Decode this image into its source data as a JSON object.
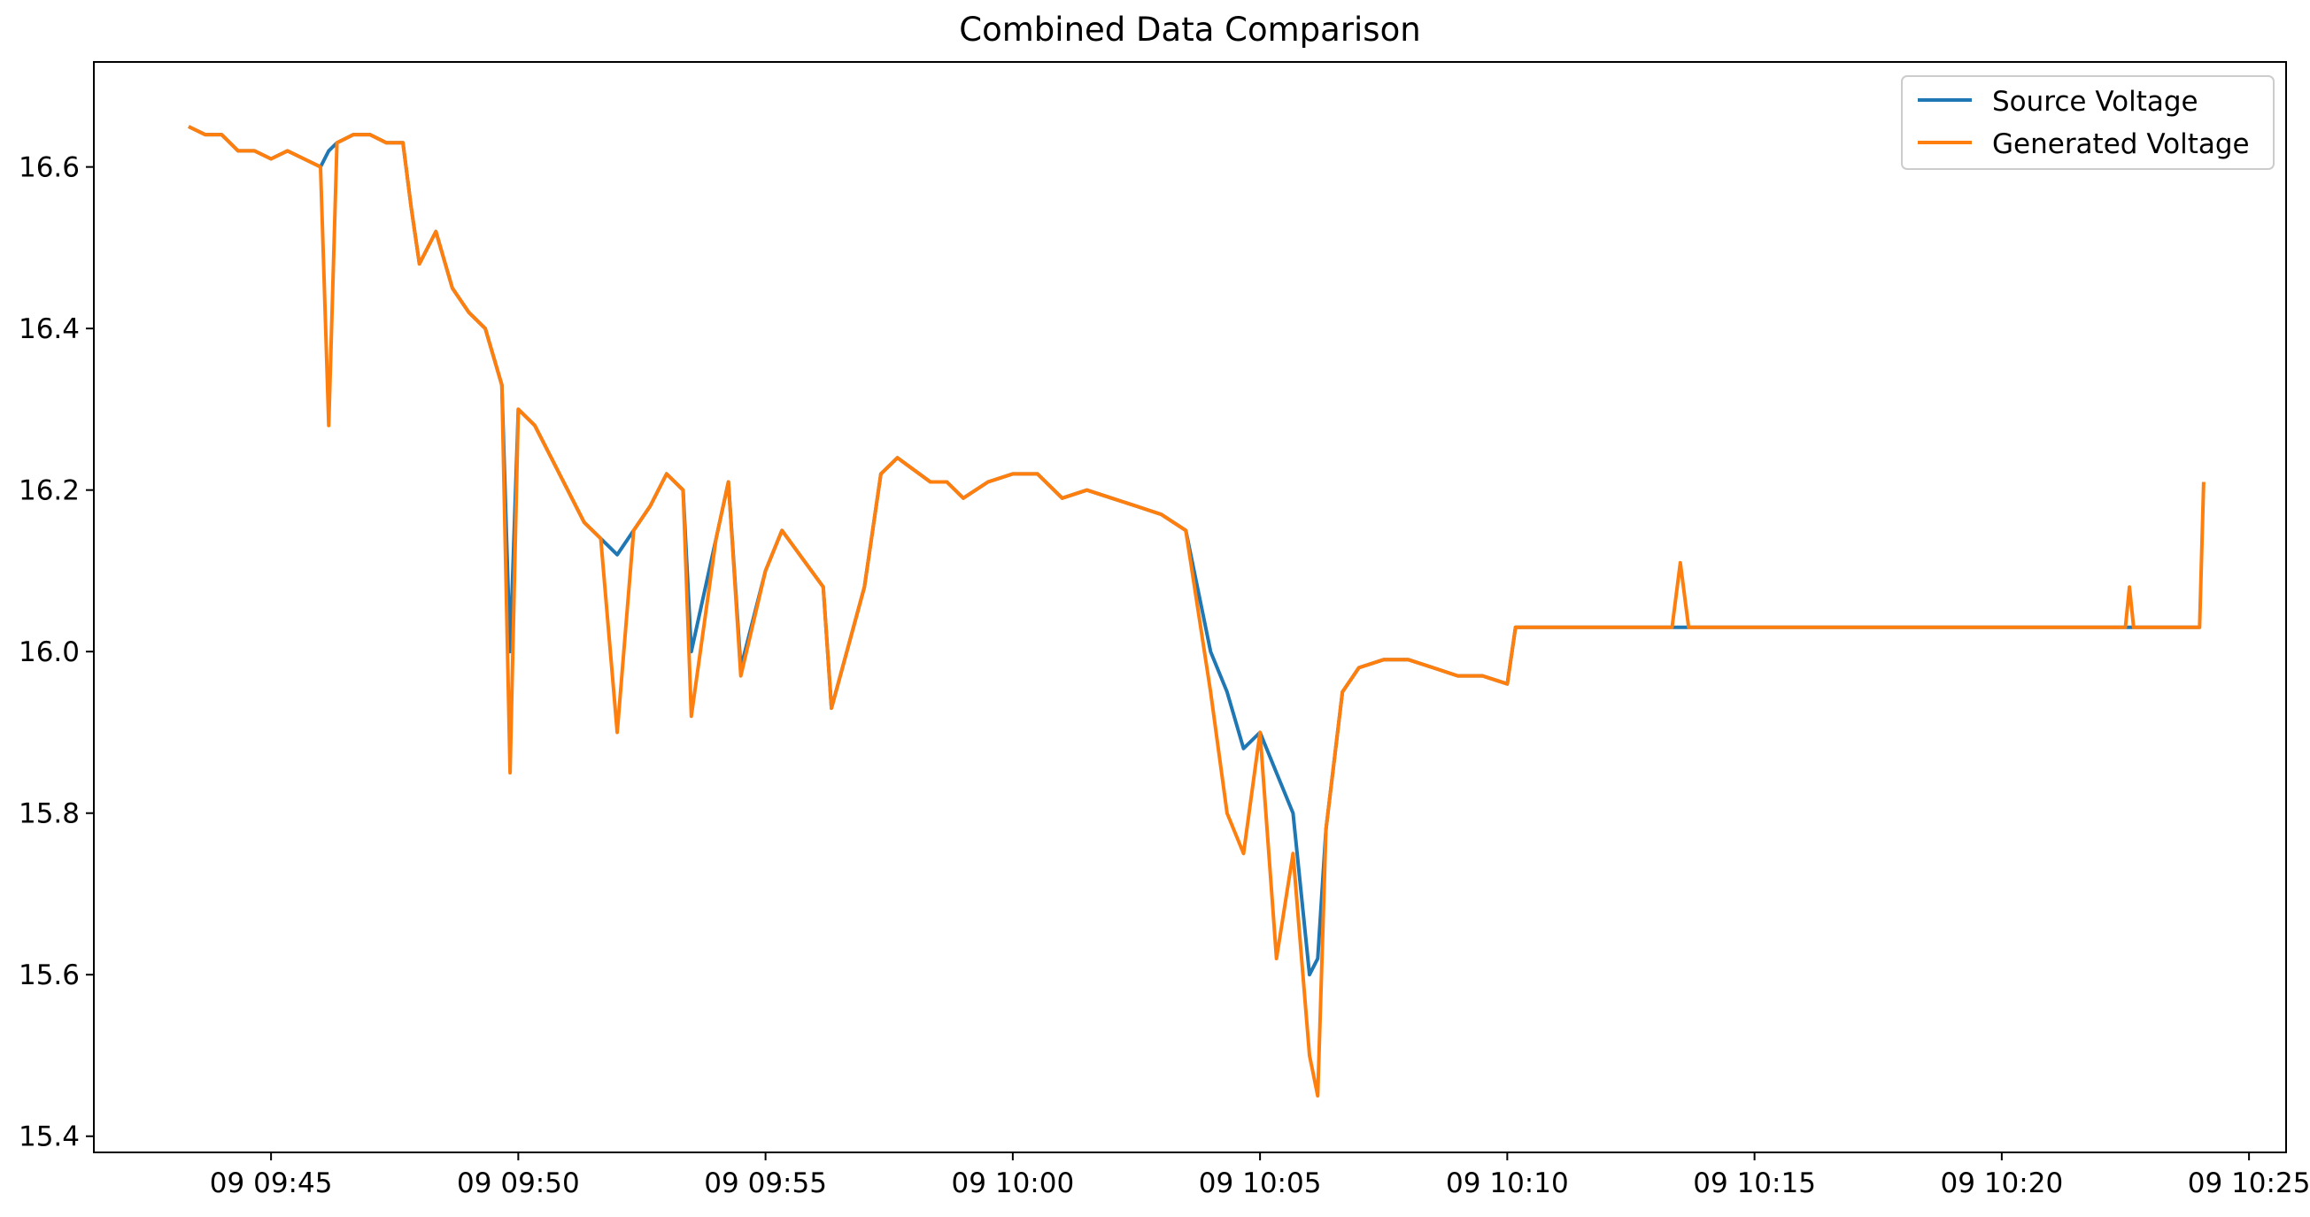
{
  "chart_data": {
    "type": "line",
    "title": "Combined Data Comparison",
    "xlabel": "",
    "ylabel": "",
    "ylim": [
      15.38,
      16.73
    ],
    "xlim": [
      "09 09:41:25",
      "09 10:25:45"
    ],
    "x_ticks": [
      "09 09:45",
      "09 09:50",
      "09 09:55",
      "09 10:00",
      "09 10:05",
      "09 10:10",
      "09 10:15",
      "09 10:20",
      "09 10:25"
    ],
    "y_ticks": [
      "15.4",
      "15.6",
      "15.8",
      "16.0",
      "16.2",
      "16.4",
      "16.6"
    ],
    "grid": false,
    "legend_position": "upper right",
    "series": [
      {
        "name": "Source Voltage",
        "color": "#1f77b4",
        "x": [
          "09 09:43:20",
          "09 09:43:40",
          "09 09:44:00",
          "09 09:44:20",
          "09 09:44:40",
          "09 09:45:00",
          "09 09:45:20",
          "09 09:45:40",
          "09 09:46:00",
          "09 09:46:10",
          "09 09:46:20",
          "09 09:46:40",
          "09 09:47:00",
          "09 09:47:20",
          "09 09:47:40",
          "09 09:47:50",
          "09 09:48:00",
          "09 09:48:20",
          "09 09:48:40",
          "09 09:49:00",
          "09 09:49:20",
          "09 09:49:40",
          "09 09:49:50",
          "09 09:50:00",
          "09 09:50:20",
          "09 09:50:40",
          "09 09:51:00",
          "09 09:51:20",
          "09 09:51:40",
          "09 09:52:00",
          "09 09:52:20",
          "09 09:52:40",
          "09 09:53:00",
          "09 09:53:20",
          "09 09:53:30",
          "09 09:54:00",
          "09 09:54:15",
          "09 09:54:30",
          "09 09:55:00",
          "09 09:55:20",
          "09 09:56:10",
          "09 09:56:20",
          "09 09:57:00",
          "09 09:57:20",
          "09 09:57:40",
          "09 09:58:20",
          "09 09:58:40",
          "09 09:59:00",
          "09 09:59:30",
          "09 10:00:00",
          "09 10:00:30",
          "09 10:01:00",
          "09 10:01:30",
          "09 10:02:00",
          "09 10:02:30",
          "09 10:03:00",
          "09 10:03:30",
          "09 10:04:00",
          "09 10:04:20",
          "09 10:04:40",
          "09 10:05:00",
          "09 10:05:20",
          "09 10:05:40",
          "09 10:06:00",
          "09 10:06:10",
          "09 10:06:20",
          "09 10:06:40",
          "09 10:07:00",
          "09 10:07:30",
          "09 10:08:00",
          "09 10:08:30",
          "09 10:09:00",
          "09 10:09:30",
          "09 10:10:00",
          "09 10:10:10",
          "09 10:13:20",
          "09 10:13:30",
          "09 10:22:30",
          "09 10:22:40",
          "09 10:24:00"
        ],
        "y": [
          16.65,
          16.64,
          16.64,
          16.62,
          16.62,
          16.61,
          16.62,
          16.61,
          16.6,
          16.62,
          16.63,
          16.64,
          16.64,
          16.63,
          16.63,
          16.55,
          16.48,
          16.52,
          16.45,
          16.42,
          16.4,
          16.33,
          16.0,
          16.3,
          16.28,
          16.24,
          16.2,
          16.16,
          16.14,
          16.12,
          16.15,
          16.18,
          16.22,
          16.2,
          16.0,
          16.14,
          16.21,
          15.98,
          16.1,
          16.15,
          16.08,
          15.93,
          16.08,
          16.22,
          16.24,
          16.21,
          16.21,
          16.19,
          16.21,
          16.22,
          16.22,
          16.19,
          16.2,
          16.19,
          16.18,
          16.17,
          16.15,
          16.0,
          15.95,
          15.88,
          15.9,
          15.85,
          15.8,
          15.6,
          15.62,
          15.78,
          15.95,
          15.98,
          15.99,
          15.99,
          15.98,
          15.97,
          15.97,
          15.96,
          16.03,
          16.03,
          16.03,
          16.03,
          16.03,
          16.03
        ]
      },
      {
        "name": "Generated Voltage",
        "color": "#ff7f0e",
        "x": [
          "09 09:43:20",
          "09 09:43:40",
          "09 09:44:00",
          "09 09:44:20",
          "09 09:44:40",
          "09 09:45:00",
          "09 09:45:20",
          "09 09:45:40",
          "09 09:46:00",
          "09 09:46:10",
          "09 09:46:20",
          "09 09:46:40",
          "09 09:47:00",
          "09 09:47:20",
          "09 09:47:40",
          "09 09:47:50",
          "09 09:48:00",
          "09 09:48:20",
          "09 09:48:40",
          "09 09:49:00",
          "09 09:49:20",
          "09 09:49:40",
          "09 09:49:50",
          "09 09:50:00",
          "09 09:50:20",
          "09 09:50:40",
          "09 09:51:00",
          "09 09:51:20",
          "09 09:51:40",
          "09 09:52:00",
          "09 09:52:20",
          "09 09:52:40",
          "09 09:53:00",
          "09 09:53:20",
          "09 09:53:30",
          "09 09:54:00",
          "09 09:54:15",
          "09 09:54:30",
          "09 09:55:00",
          "09 09:55:20",
          "09 09:56:10",
          "09 09:56:20",
          "09 09:57:00",
          "09 09:57:20",
          "09 09:57:40",
          "09 09:58:20",
          "09 09:58:40",
          "09 09:59:00",
          "09 09:59:30",
          "09 10:00:00",
          "09 10:00:30",
          "09 10:01:00",
          "09 10:01:30",
          "09 10:02:00",
          "09 10:02:30",
          "09 10:03:00",
          "09 10:03:30",
          "09 10:04:00",
          "09 10:04:20",
          "09 10:04:40",
          "09 10:05:00",
          "09 10:05:20",
          "09 10:05:40",
          "09 10:06:00",
          "09 10:06:10",
          "09 10:06:20",
          "09 10:06:40",
          "09 10:07:00",
          "09 10:07:30",
          "09 10:08:00",
          "09 10:08:30",
          "09 10:09:00",
          "09 10:09:30",
          "09 10:10:00",
          "09 10:10:10",
          "09 10:13:20",
          "09 10:13:30",
          "09 10:13:40",
          "09 10:22:30",
          "09 10:22:35",
          "09 10:22:40",
          "09 10:24:00",
          "09 10:24:05"
        ],
        "y": [
          16.65,
          16.64,
          16.64,
          16.62,
          16.62,
          16.61,
          16.62,
          16.61,
          16.6,
          16.28,
          16.63,
          16.64,
          16.64,
          16.63,
          16.63,
          16.55,
          16.48,
          16.52,
          16.45,
          16.42,
          16.4,
          16.33,
          15.85,
          16.3,
          16.28,
          16.24,
          16.2,
          16.16,
          16.14,
          15.9,
          16.15,
          16.18,
          16.22,
          16.2,
          15.92,
          16.14,
          16.21,
          15.97,
          16.1,
          16.15,
          16.08,
          15.93,
          16.08,
          16.22,
          16.24,
          16.21,
          16.21,
          16.19,
          16.21,
          16.22,
          16.22,
          16.19,
          16.2,
          16.19,
          16.18,
          16.17,
          16.15,
          15.95,
          15.8,
          15.75,
          15.9,
          15.62,
          15.75,
          15.5,
          15.45,
          15.78,
          15.95,
          15.98,
          15.99,
          15.99,
          15.98,
          15.97,
          15.97,
          15.96,
          16.03,
          16.03,
          16.11,
          16.03,
          16.03,
          16.08,
          16.03,
          16.03,
          16.21
        ]
      }
    ]
  }
}
